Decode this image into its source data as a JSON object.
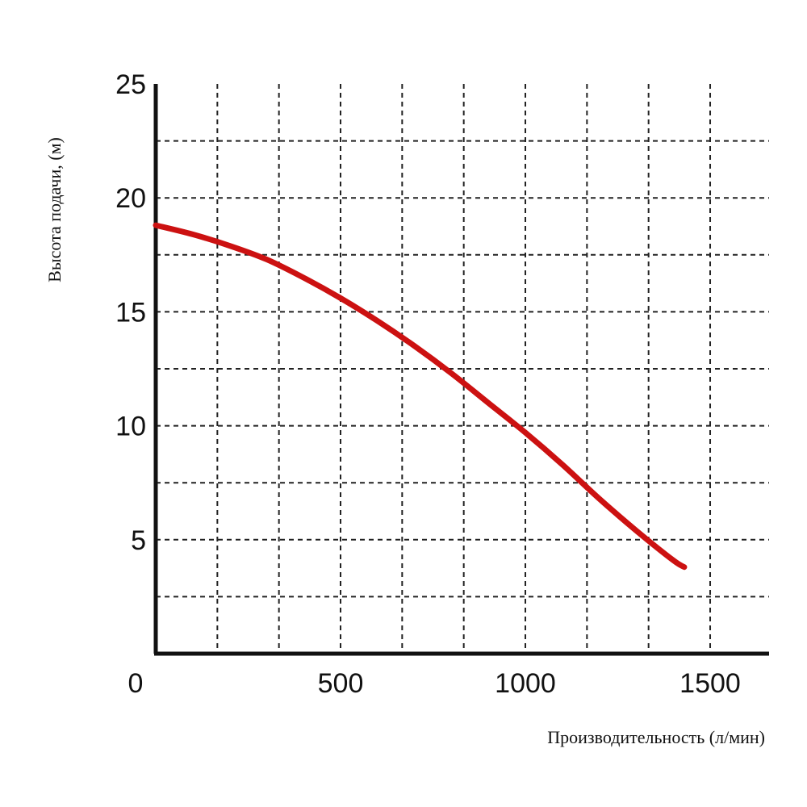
{
  "chart_data": {
    "type": "line",
    "title": "",
    "xlabel": "Производительность (л/мин)",
    "ylabel": "Высота подачи, (м)",
    "xlim": [
      0,
      1650
    ],
    "ylim": [
      0,
      25
    ],
    "x_ticks": [
      0,
      500,
      1000,
      1500
    ],
    "y_ticks": [
      5,
      10,
      15,
      20,
      25
    ],
    "x_grid_step": 166.67,
    "y_grid_step": 2.5,
    "grid": true,
    "series": [
      {
        "color": "#cc1111",
        "x": [
          0,
          100,
          200,
          300,
          400,
          500,
          600,
          700,
          800,
          900,
          1000,
          1100,
          1200,
          1300,
          1400,
          1430
        ],
        "y": [
          18.8,
          18.4,
          17.9,
          17.3,
          16.5,
          15.6,
          14.6,
          13.5,
          12.3,
          11.0,
          9.7,
          8.3,
          6.8,
          5.4,
          4.1,
          3.8
        ]
      }
    ]
  }
}
